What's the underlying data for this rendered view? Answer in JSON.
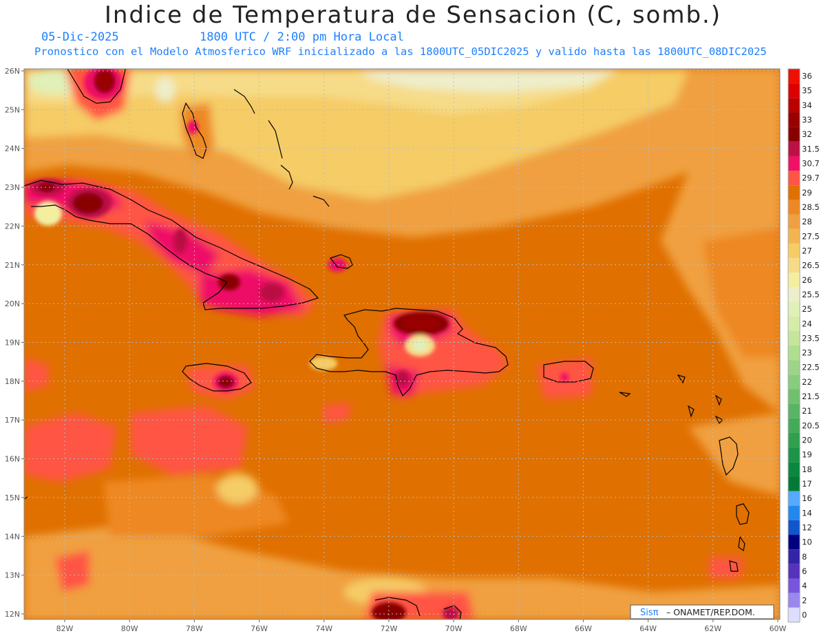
{
  "header": {
    "title": "Indice de Temperatura de Sensacion (C, somb.)",
    "date": "05-Dic-2025",
    "time": "1800 UTC / 2:00 pm Hora Local",
    "model_info": "Pronostico con el Modelo Atmosferico WRF inicializado a las 1800UTC_05DIC2025 y valido hasta las  1800UTC_08DIC2025"
  },
  "map": {
    "lat_labels": [
      "26N",
      "25N",
      "24N",
      "23N",
      "22N",
      "21N",
      "20N",
      "19N",
      "18N",
      "17N",
      "16N",
      "15N",
      "14N",
      "13N",
      "12N"
    ],
    "lon_labels": [
      "82W",
      "80W",
      "78W",
      "76W",
      "74W",
      "72W",
      "70W",
      "68W",
      "66W",
      "64W",
      "62W",
      "60W"
    ],
    "base_color": "#e07000"
  },
  "colorbar": {
    "levels": [
      {
        "label": "36",
        "color": "#ee1000"
      },
      {
        "label": "35",
        "color": "#dd0000"
      },
      {
        "label": "34",
        "color": "#bb0000"
      },
      {
        "label": "33",
        "color": "#990000"
      },
      {
        "label": "32",
        "color": "#880000"
      },
      {
        "label": "31.5",
        "color": "#bb1144"
      },
      {
        "label": "30.7",
        "color": "#ee1166"
      },
      {
        "label": "29.7",
        "color": "#ff5544"
      },
      {
        "label": "29",
        "color": "#e07000"
      },
      {
        "label": "28.5",
        "color": "#ee8822"
      },
      {
        "label": "28",
        "color": "#f0a040"
      },
      {
        "label": "27.5",
        "color": "#f3b550"
      },
      {
        "label": "27",
        "color": "#f5cc66"
      },
      {
        "label": "26.5",
        "color": "#f6dc88"
      },
      {
        "label": "26",
        "color": "#f3eea0"
      },
      {
        "label": "25.5",
        "color": "#eeeecc"
      },
      {
        "label": "25",
        "color": "#e0f0b8"
      },
      {
        "label": "24",
        "color": "#d4eca8"
      },
      {
        "label": "23.5",
        "color": "#c4e69a"
      },
      {
        "label": "23",
        "color": "#b0de90"
      },
      {
        "label": "22.5",
        "color": "#9cd488"
      },
      {
        "label": "22",
        "color": "#88cc80"
      },
      {
        "label": "21.5",
        "color": "#70c070"
      },
      {
        "label": "21",
        "color": "#5ab466"
      },
      {
        "label": "20.5",
        "color": "#44aa5a"
      },
      {
        "label": "20",
        "color": "#30a050"
      },
      {
        "label": "19",
        "color": "#1c9448"
      },
      {
        "label": "18",
        "color": "#0a8840"
      },
      {
        "label": "17",
        "color": "#007a36"
      },
      {
        "label": "16",
        "color": "#55aaff"
      },
      {
        "label": "14",
        "color": "#2288ee"
      },
      {
        "label": "12",
        "color": "#1155cc"
      },
      {
        "label": "10",
        "color": "#000080"
      },
      {
        "label": "8",
        "color": "#3322aa"
      },
      {
        "label": "6",
        "color": "#5533bb"
      },
      {
        "label": "4",
        "color": "#7755dd"
      },
      {
        "label": "2",
        "color": "#9988ee"
      },
      {
        "label": "0",
        "color": "#ddddff"
      }
    ]
  },
  "credit": {
    "brand": "Sisπ",
    "text": " – ONAMET/REP.DOM."
  }
}
